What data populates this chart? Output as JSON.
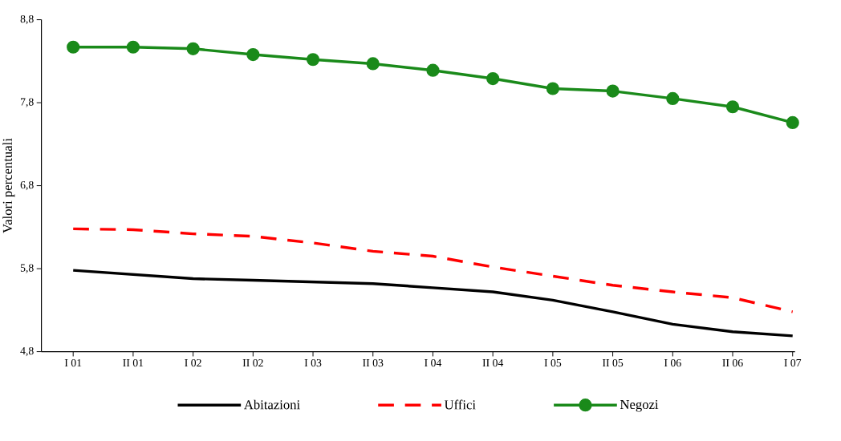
{
  "chart_data": {
    "type": "line",
    "ylabel": "Valori percentuali",
    "categories": [
      "I 01",
      "II 01",
      "I 02",
      "II 02",
      "I 03",
      "II 03",
      "I 04",
      "II 04",
      "I 05",
      "II 05",
      "I 06",
      "II 06",
      "I 07"
    ],
    "series": [
      {
        "name": "Abitazioni",
        "color": "#000000",
        "line_style": "solid",
        "marker": "none",
        "values": [
          5.78,
          5.73,
          5.68,
          5.66,
          5.64,
          5.62,
          5.57,
          5.52,
          5.42,
          5.28,
          5.13,
          5.04,
          4.99
        ]
      },
      {
        "name": "Uffici",
        "color": "#ff0000",
        "line_style": "dashed",
        "marker": "none",
        "values": [
          6.28,
          6.27,
          6.22,
          6.19,
          6.11,
          6.01,
          5.95,
          5.82,
          5.71,
          5.6,
          5.52,
          5.45,
          5.28
        ]
      },
      {
        "name": "Negozi",
        "color": "#1a8a1a",
        "line_style": "solid",
        "marker": "circle",
        "values": [
          8.47,
          8.47,
          8.45,
          8.38,
          8.32,
          8.27,
          8.19,
          8.09,
          7.97,
          7.94,
          7.85,
          7.75,
          7.56
        ]
      }
    ],
    "ylim": [
      4.8,
      8.8
    ],
    "yticks": [
      {
        "value": 4.8,
        "label": "4,8"
      },
      {
        "value": 5.8,
        "label": "5,8"
      },
      {
        "value": 6.8,
        "label": "6,8"
      },
      {
        "value": 7.8,
        "label": "7,8"
      },
      {
        "value": 8.8,
        "label": "8,8"
      }
    ],
    "grid": false,
    "legend": "bottom"
  }
}
